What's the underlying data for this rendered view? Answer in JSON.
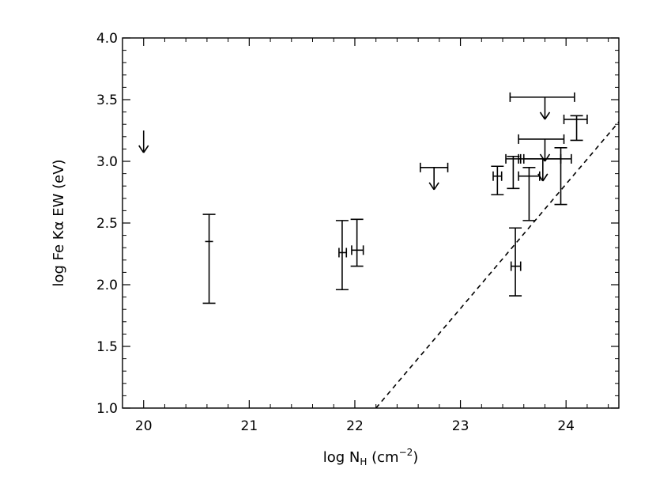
{
  "chart_data": {
    "type": "scatter",
    "xlabel": {
      "prefix": "log N",
      "sub": "H",
      "unit_open": " (cm",
      "sup": "−2",
      "unit_close": ")"
    },
    "ylabel": "log Fe Kα EW (eV)",
    "xlim": [
      19.8,
      24.5
    ],
    "ylim": [
      1.0,
      4.0
    ],
    "xticks": [
      20,
      21,
      22,
      23,
      24
    ],
    "yticks": [
      1.0,
      1.5,
      2.0,
      2.5,
      3.0,
      3.5,
      4.0
    ],
    "xtick_labels": [
      "20",
      "21",
      "22",
      "23",
      "24"
    ],
    "ytick_labels": [
      "1.0",
      "1.5",
      "2.0",
      "2.5",
      "3.0",
      "3.5",
      "4.0"
    ],
    "grid": false,
    "legend": "none",
    "colors": {
      "marks": "#000000",
      "background": "#ffffff"
    },
    "points": [
      {
        "x": 20.62,
        "y": 2.35,
        "xerr": [
          0.0,
          0.0
        ],
        "yerr": [
          1.85,
          2.57
        ]
      },
      {
        "x": 21.88,
        "y": 2.26,
        "xerr": [
          21.85,
          21.92
        ],
        "yerr": [
          1.96,
          2.52
        ]
      },
      {
        "x": 22.02,
        "y": 2.28,
        "xerr": [
          21.97,
          22.08
        ],
        "yerr": [
          2.15,
          2.53
        ]
      },
      {
        "x": 23.35,
        "y": 2.88,
        "xerr": [
          23.31,
          23.39
        ],
        "yerr": [
          2.73,
          2.96
        ]
      },
      {
        "x": 23.52,
        "y": 2.15,
        "xerr": [
          23.48,
          23.57
        ],
        "yerr": [
          1.91,
          2.46
        ]
      },
      {
        "x": 23.5,
        "y": 3.02,
        "xerr": [
          23.43,
          23.57
        ],
        "yerr": [
          2.78,
          3.04
        ]
      },
      {
        "x": 23.65,
        "y": 2.88,
        "xerr": [
          23.55,
          23.75
        ],
        "yerr": [
          2.52,
          2.95
        ]
      },
      {
        "x": 23.95,
        "y": 3.02,
        "xerr": [
          23.55,
          24.05
        ],
        "yerr": [
          2.65,
          3.11
        ]
      },
      {
        "x": 24.1,
        "y": 3.34,
        "xerr": [
          23.98,
          24.2
        ],
        "yerr": [
          3.17,
          3.37
        ]
      }
    ],
    "upper_limits": [
      {
        "x": 20.0,
        "y": 3.25,
        "xerr": null
      },
      {
        "x": 22.75,
        "y": 2.95,
        "xerr": [
          22.62,
          22.88
        ]
      },
      {
        "x": 23.8,
        "y": 3.52,
        "xerr": [
          23.47,
          24.08
        ]
      },
      {
        "x": 23.8,
        "y": 3.18,
        "xerr": [
          23.55,
          23.98
        ]
      },
      {
        "x": 23.78,
        "y": 3.02,
        "xerr": [
          23.6,
          23.95
        ]
      }
    ],
    "reference_line": {
      "style": "dashed",
      "points": [
        [
          22.2,
          1.0
        ],
        [
          24.5,
          3.32
        ]
      ]
    }
  }
}
